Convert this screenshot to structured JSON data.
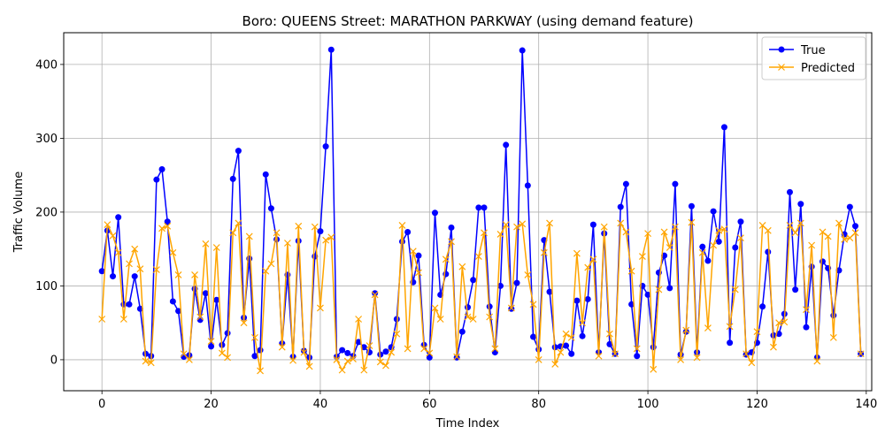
{
  "chart_data": {
    "type": "line",
    "title": "Boro: QUEENS Street: MARATHON PARKWAY (using demand feature)",
    "xlabel": "Time Index",
    "ylabel": "Traffic Volume",
    "xlim": [
      -7,
      141
    ],
    "ylim": [
      -42,
      443
    ],
    "xticks": [
      0,
      20,
      40,
      60,
      80,
      100,
      120,
      140
    ],
    "yticks": [
      0,
      100,
      200,
      300,
      400
    ],
    "grid": true,
    "legend_position": "upper right",
    "series": [
      {
        "name": "True",
        "color": "#0000ff",
        "marker": "circle",
        "values": [
          120,
          175,
          113,
          193,
          75,
          75,
          113,
          69,
          8,
          5,
          244,
          258,
          187,
          79,
          66,
          4,
          6,
          96,
          54,
          90,
          18,
          81,
          20,
          36,
          245,
          283,
          57,
          137,
          5,
          13,
          251,
          205,
          163,
          22,
          115,
          4,
          161,
          12,
          3,
          140,
          174,
          289,
          420,
          4,
          13,
          9,
          5,
          24,
          17,
          10,
          90,
          7,
          11,
          17,
          55,
          160,
          173,
          105,
          141,
          20,
          3,
          199,
          88,
          116,
          179,
          3,
          38,
          71,
          108,
          206,
          206,
          72,
          10,
          100,
          291,
          69,
          104,
          419,
          236,
          31,
          14,
          162,
          92,
          17,
          18,
          19,
          8,
          80,
          32,
          82,
          183,
          10,
          171,
          21,
          8,
          207,
          238,
          75,
          5,
          100,
          88,
          17,
          118,
          141,
          97,
          238,
          7,
          38,
          208,
          10,
          153,
          134,
          201,
          160,
          315,
          23,
          152,
          187,
          7,
          10,
          23,
          72,
          146,
          33,
          35,
          62,
          227,
          95,
          211,
          44,
          126,
          3,
          133,
          124,
          60,
          121,
          170,
          207,
          181,
          8
        ]
      },
      {
        "name": "Predicted",
        "color": "#ffa500",
        "marker": "x",
        "values": [
          55,
          183,
          168,
          145,
          55,
          130,
          150,
          123,
          -2,
          -4,
          122,
          178,
          181,
          145,
          115,
          8,
          0,
          115,
          58,
          157,
          25,
          152,
          9,
          3,
          172,
          185,
          50,
          167,
          30,
          -15,
          120,
          130,
          172,
          17,
          158,
          -1,
          181,
          10,
          -9,
          180,
          70,
          162,
          166,
          0,
          -14,
          -2,
          1,
          55,
          -14,
          19,
          88,
          -3,
          -8,
          10,
          35,
          182,
          15,
          147,
          118,
          15,
          9,
          70,
          55,
          136,
          160,
          4,
          126,
          58,
          55,
          140,
          172,
          58,
          15,
          170,
          183,
          70,
          180,
          184,
          115,
          75,
          0,
          145,
          185,
          -6,
          10,
          35,
          30,
          144,
          50,
          125,
          136,
          5,
          180,
          35,
          8,
          185,
          173,
          120,
          15,
          140,
          171,
          -13,
          95,
          173,
          152,
          180,
          0,
          40,
          186,
          3,
          145,
          43,
          155,
          175,
          177,
          45,
          95,
          165,
          8,
          -4,
          38,
          182,
          175,
          17,
          50,
          51,
          182,
          172,
          185,
          68,
          155,
          -2,
          173,
          167,
          30,
          185,
          163,
          165,
          172,
          8
        ]
      }
    ]
  }
}
